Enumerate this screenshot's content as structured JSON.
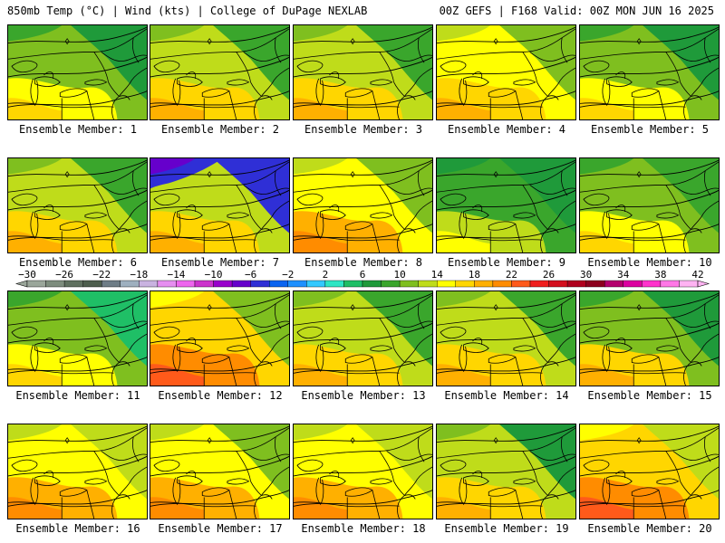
{
  "header": {
    "left": "850mb Temp (°C) | Wind (kts) | College of DuPage NEXLAB",
    "right": "00Z GEFS | F168 Valid: 00Z MON JUN 16 2025"
  },
  "label_prefix": "Ensemble Member: ",
  "members": [
    {
      "label": "Ensemble Member: 1",
      "scheme": [
        14,
        10,
        6
      ]
    },
    {
      "label": "Ensemble Member: 2",
      "scheme": [
        16,
        12,
        8
      ]
    },
    {
      "label": "Ensemble Member: 3",
      "scheme": [
        16,
        12,
        8
      ]
    },
    {
      "label": "Ensemble Member: 4",
      "scheme": [
        16,
        14,
        10
      ]
    },
    {
      "label": "Ensemble Member: 5",
      "scheme": [
        14,
        10,
        6
      ]
    },
    {
      "label": "Ensemble Member: 6",
      "scheme": [
        16,
        12,
        8
      ]
    },
    {
      "label": "Ensemble Member: 7",
      "scheme": [
        16,
        12,
        -6
      ]
    },
    {
      "label": "Ensemble Member: 8",
      "scheme": [
        18,
        14,
        10
      ]
    },
    {
      "label": "Ensemble Member: 9",
      "scheme": [
        12,
        8,
        6
      ]
    },
    {
      "label": "Ensemble Member: 10",
      "scheme": [
        14,
        10,
        8
      ]
    },
    {
      "label": "Ensemble Member: 11",
      "scheme": [
        14,
        10,
        4
      ]
    },
    {
      "label": "Ensemble Member: 12",
      "scheme": [
        20,
        16,
        10
      ]
    },
    {
      "label": "Ensemble Member: 13",
      "scheme": [
        16,
        12,
        8
      ]
    },
    {
      "label": "Ensemble Member: 14",
      "scheme": [
        16,
        12,
        8
      ]
    },
    {
      "label": "Ensemble Member: 15",
      "scheme": [
        16,
        10,
        6
      ]
    },
    {
      "label": "Ensemble Member: 16",
      "scheme": [
        18,
        14,
        12
      ]
    },
    {
      "label": "Ensemble Member: 17",
      "scheme": [
        18,
        14,
        10
      ]
    },
    {
      "label": "Ensemble Member: 18",
      "scheme": [
        18,
        14,
        12
      ]
    },
    {
      "label": "Ensemble Member: 19",
      "scheme": [
        16,
        12,
        6
      ]
    },
    {
      "label": "Ensemble Member: 20",
      "scheme": [
        20,
        16,
        12
      ]
    }
  ],
  "colorbar": {
    "tick_labels": [
      "−30",
      "−26",
      "−22",
      "−18",
      "−14",
      "−10",
      "−6",
      "−2",
      "2",
      "6",
      "10",
      "14",
      "18",
      "22",
      "26",
      "30",
      "34",
      "38",
      "42"
    ],
    "bins": [
      {
        "min": -30,
        "color": "#9aa69a"
      },
      {
        "min": -28,
        "color": "#7d8c7d"
      },
      {
        "min": -26,
        "color": "#5f705f"
      },
      {
        "min": -24,
        "color": "#4d5e4d"
      },
      {
        "min": -22,
        "color": "#6e7d86"
      },
      {
        "min": -20,
        "color": "#9eb0bf"
      },
      {
        "min": -18,
        "color": "#c9b3e0"
      },
      {
        "min": -16,
        "color": "#e68ef0"
      },
      {
        "min": -14,
        "color": "#ee66ee"
      },
      {
        "min": -12,
        "color": "#cc33cc"
      },
      {
        "min": -10,
        "color": "#9900cc"
      },
      {
        "min": -8,
        "color": "#6600cc"
      },
      {
        "min": -6,
        "color": "#2f2fd6"
      },
      {
        "min": -4,
        "color": "#0a64f0"
      },
      {
        "min": -2,
        "color": "#1e90ff"
      },
      {
        "min": 0,
        "color": "#33c9ff"
      },
      {
        "min": 2,
        "color": "#2ee6c4"
      },
      {
        "min": 4,
        "color": "#1fbf66"
      },
      {
        "min": 6,
        "color": "#1f9a3a"
      },
      {
        "min": 8,
        "color": "#3aa62c"
      },
      {
        "min": 10,
        "color": "#7fbf1f"
      },
      {
        "min": 12,
        "color": "#bfdc1a"
      },
      {
        "min": 14,
        "color": "#ffff00"
      },
      {
        "min": 16,
        "color": "#ffd600"
      },
      {
        "min": 18,
        "color": "#ffb000"
      },
      {
        "min": 20,
        "color": "#ff8c00"
      },
      {
        "min": 22,
        "color": "#ff5a1a"
      },
      {
        "min": 24,
        "color": "#f01e1e"
      },
      {
        "min": 26,
        "color": "#d40f1e"
      },
      {
        "min": 28,
        "color": "#b0001e"
      },
      {
        "min": 30,
        "color": "#8c001e"
      },
      {
        "min": 32,
        "color": "#b4006e"
      },
      {
        "min": 34,
        "color": "#dc00a0"
      },
      {
        "min": 36,
        "color": "#ff33cc"
      },
      {
        "min": 38,
        "color": "#ff77e6"
      },
      {
        "min": 40,
        "color": "#ffb3f2"
      }
    ]
  }
}
